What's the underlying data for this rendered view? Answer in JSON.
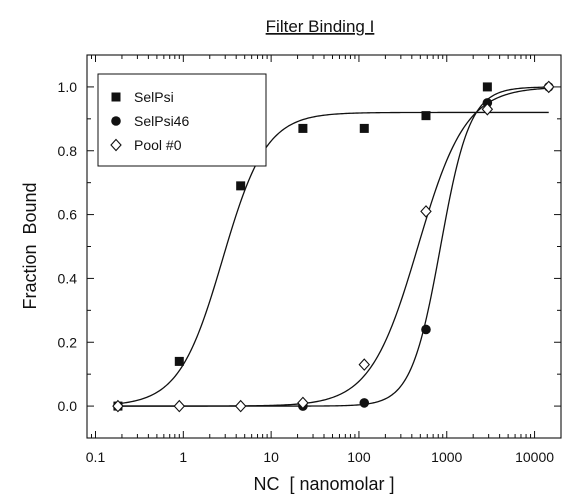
{
  "chart_data": {
    "type": "scatter",
    "title": "Filter Binding I",
    "xlabel": "NC  [ nanomolar ]",
    "ylabel": "Fraction  Bound",
    "x_scale": "log",
    "xlim": [
      0.08,
      20000
    ],
    "ylim": [
      -0.1,
      1.1
    ],
    "x_ticks": [
      0.1,
      1,
      10,
      100,
      1000,
      10000
    ],
    "x_tick_labels": [
      "0.1",
      "1",
      "10",
      "100",
      "1000",
      "10000"
    ],
    "y_ticks": [
      0.0,
      0.2,
      0.4,
      0.6,
      0.8,
      1.0
    ],
    "y_tick_labels": [
      "0.0",
      "0.2",
      "0.4",
      "0.6",
      "0.8",
      "1.0"
    ],
    "grid": false,
    "legend_position": "top-left",
    "series": [
      {
        "name": "SelPsi",
        "marker": "filled-square",
        "x": [
          0.18,
          0.9,
          4.5,
          23,
          115,
          580,
          2900
        ],
        "y": [
          0.0,
          0.14,
          0.69,
          0.87,
          0.87,
          0.91,
          1.0
        ],
        "fit": {
          "bottom": 0.0,
          "top": 0.92,
          "ec50": 2.8,
          "hill": 1.75
        }
      },
      {
        "name": "SelPsi46",
        "marker": "filled-circle",
        "x": [
          0.18,
          23,
          115,
          580,
          2900,
          14500
        ],
        "y": [
          0.0,
          0.0,
          0.01,
          0.24,
          0.95,
          1.0
        ],
        "fit": {
          "bottom": 0.0,
          "top": 1.0,
          "ec50": 850,
          "hill": 2.6
        }
      },
      {
        "name": "Pool #0",
        "marker": "open-diamond",
        "x": [
          0.18,
          0.9,
          4.5,
          23,
          115,
          580,
          2900,
          14500
        ],
        "y": [
          0.0,
          0.0,
          0.0,
          0.01,
          0.13,
          0.61,
          0.93,
          1.0
        ],
        "fit": {
          "bottom": 0.0,
          "top": 1.0,
          "ec50": 470,
          "hill": 1.6
        }
      }
    ]
  }
}
